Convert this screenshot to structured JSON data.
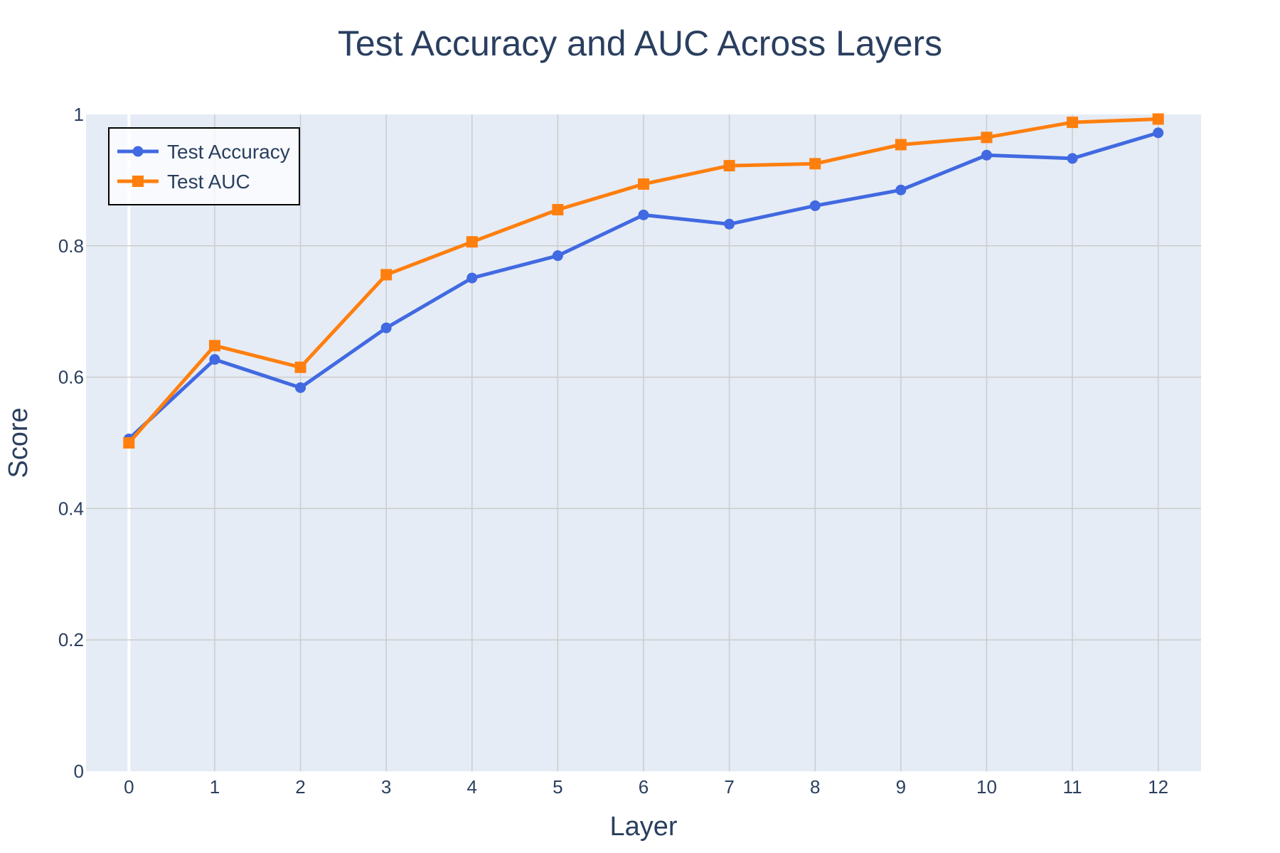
{
  "chart_data": {
    "type": "line",
    "title": "Test Accuracy and AUC Across Layers",
    "xlabel": "Layer",
    "ylabel": "Score",
    "x": [
      0,
      1,
      2,
      3,
      4,
      5,
      6,
      7,
      8,
      9,
      10,
      11,
      12
    ],
    "xlim": [
      -0.5,
      12.5
    ],
    "ylim": [
      0,
      1
    ],
    "x_ticks": [
      "0",
      "1",
      "2",
      "3",
      "4",
      "5",
      "6",
      "7",
      "8",
      "9",
      "10",
      "11",
      "12"
    ],
    "y_ticks": [
      "0",
      "0.2",
      "0.4",
      "0.6",
      "0.8",
      "1"
    ],
    "grid": true,
    "legend_position": "top-left",
    "series": [
      {
        "name": "Test Accuracy",
        "color": "#4169e1",
        "marker": "circle",
        "values": [
          0.506,
          0.627,
          0.584,
          0.675,
          0.751,
          0.785,
          0.847,
          0.833,
          0.861,
          0.885,
          0.938,
          0.933,
          0.972
        ]
      },
      {
        "name": "Test AUC",
        "color": "#ff7f0e",
        "marker": "square",
        "values": [
          0.5,
          0.648,
          0.615,
          0.756,
          0.806,
          0.855,
          0.894,
          0.922,
          0.925,
          0.954,
          0.965,
          0.988,
          0.993
        ]
      }
    ],
    "colors": {
      "plot_background": "#e5ecf6",
      "grid": "#cccccc",
      "zero_line": "#ffffff",
      "text": "#2a3f5f"
    }
  }
}
